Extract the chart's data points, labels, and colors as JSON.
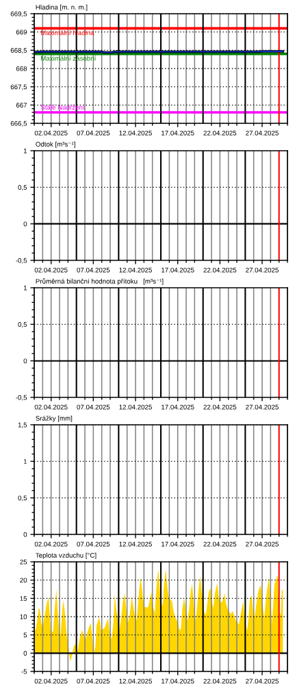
{
  "chart_data": [
    {
      "type": "line",
      "ylabel": "Hladina [m. n. m.]",
      "xlim": [
        "2025-03-31",
        "2025-04-30"
      ],
      "xticks": [
        {
          "value": "2025-03-31",
          "label": null
        },
        {
          "value": "2025-04-01",
          "label": null
        },
        {
          "value": "2025-04-02",
          "label": "02.04.2025"
        },
        {
          "value": "2025-04-03",
          "label": null
        },
        {
          "value": "2025-04-04",
          "label": null
        },
        {
          "value": "2025-04-06",
          "label": null
        },
        {
          "value": "2025-04-07",
          "label": "07.04.2025"
        },
        {
          "value": "2025-04-08",
          "label": null
        },
        {
          "value": "2025-04-09",
          "label": null
        },
        {
          "value": "2025-04-11",
          "label": null
        },
        {
          "value": "2025-04-12",
          "label": "12.04.2025"
        },
        {
          "value": "2025-04-13",
          "label": null
        },
        {
          "value": "2025-04-14",
          "label": null
        },
        {
          "value": "2025-04-16",
          "label": null
        },
        {
          "value": "2025-04-17",
          "label": "17.04.2025"
        },
        {
          "value": "2025-04-18",
          "label": null
        },
        {
          "value": "2025-04-19",
          "label": null
        },
        {
          "value": "2025-04-21",
          "label": null
        },
        {
          "value": "2025-04-22",
          "label": "22.04.2025"
        },
        {
          "value": "2025-04-23",
          "label": null
        },
        {
          "value": "2025-04-24",
          "label": null
        },
        {
          "value": "2025-04-26",
          "label": null
        },
        {
          "value": "2025-04-27",
          "label": "27.04.2025"
        },
        {
          "value": "2025-04-28",
          "label": null
        },
        {
          "value": "2025-04-29",
          "label": null
        },
        {
          "value": "2025-04-30",
          "label": null
        }
      ],
      "ylim": [
        666.5,
        669.5
      ],
      "yticks": [
        {
          "value": 666.5,
          "label": "666,5"
        },
        {
          "value": 666.6,
          "label": null
        },
        {
          "value": 666.7,
          "label": null
        },
        {
          "value": 666.8,
          "label": null
        },
        {
          "value": 666.9,
          "label": null
        },
        667,
        {
          "value": 667.1,
          "label": null
        },
        {
          "value": 667.2,
          "label": null
        },
        {
          "value": 667.3,
          "label": null
        },
        {
          "value": 667.4,
          "label": null
        },
        {
          "value": 667.5,
          "label": "667,5"
        },
        {
          "value": 667.6,
          "label": null
        },
        {
          "value": 667.7,
          "label": null
        },
        {
          "value": 667.8,
          "label": null
        },
        {
          "value": 667.9,
          "label": null
        },
        668,
        {
          "value": 668.1,
          "label": null
        },
        {
          "value": 668.2,
          "label": null
        },
        {
          "value": 668.3,
          "label": null
        },
        {
          "value": 668.4,
          "label": null
        },
        {
          "value": 668.5,
          "label": "668,5"
        },
        {
          "value": 668.6,
          "label": null
        },
        {
          "value": 668.7,
          "label": null
        },
        {
          "value": 668.8,
          "label": null
        },
        {
          "value": 668.9,
          "label": null
        },
        669,
        {
          "value": 669.1,
          "label": null
        },
        {
          "value": 669.2,
          "label": null
        },
        {
          "value": 669.3,
          "label": null
        },
        {
          "value": 669.4,
          "label": null
        },
        {
          "value": 669.5,
          "label": "669,5"
        }
      ],
      "grid": true,
      "series": [
        {
          "color": "#000000",
          "x": [
            "2025-03-31T00:00",
            "2025-04-01T00:00",
            "2025-04-08T00:00",
            "2025-04-08T06:00",
            "2025-04-09T06:00",
            "2025-04-09T12:00",
            "2025-04-26T12:00",
            "2025-04-27T00:00",
            "2025-04-29T11:00"
          ],
          "values": [
            668.45,
            668.46,
            668.46,
            668.44,
            668.44,
            668.46,
            668.46,
            668.47,
            668.47
          ]
        },
        {
          "color": "#1030e0",
          "x": [
            "2025-03-31T00:00",
            "2025-04-01T00:00",
            "2025-04-08T00:00",
            "2025-04-08T06:00",
            "2025-04-09T06:00",
            "2025-04-09T12:00",
            "2025-04-26T12:00",
            "2025-04-27T00:00",
            "2025-04-29T11:00"
          ],
          "values": [
            668.45,
            668.46,
            668.46,
            668.44,
            668.44,
            668.46,
            668.46,
            668.47,
            668.47
          ]
        }
      ],
      "ref_lines": [
        {
          "axis": "y",
          "value": 669.1,
          "label": "Maximální hladina",
          "color": "#ff0000"
        },
        {
          "axis": "y",
          "value": 668.4,
          "label": "Maximální zásobní",
          "color": "#008000"
        },
        {
          "axis": "y",
          "value": 666.8,
          "label": "Stálé Nadržení",
          "color": "#ff00ff"
        },
        {
          "axis": "x",
          "value": "2025-04-05",
          "color": "#000000"
        },
        {
          "axis": "x",
          "value": "2025-04-10",
          "color": "#000000"
        },
        {
          "axis": "x",
          "value": "2025-04-15",
          "color": "#000000"
        },
        {
          "axis": "x",
          "value": "2025-04-20",
          "color": "#000000"
        },
        {
          "axis": "x",
          "value": "2025-04-25",
          "color": "#000000"
        },
        {
          "axis": "x",
          "value": "2025-04-29",
          "color": "#ff0000"
        }
      ]
    },
    {
      "type": "line",
      "ylabel": "Odtok [m³s⁻¹]",
      "xlim": [
        "2025-03-31",
        "2025-04-30"
      ],
      "xticks": [
        {
          "value": "2025-03-31",
          "label": null
        },
        {
          "value": "2025-04-01",
          "label": null
        },
        {
          "value": "2025-04-02",
          "label": "02.04.2025"
        },
        {
          "value": "2025-04-03",
          "label": null
        },
        {
          "value": "2025-04-04",
          "label": null
        },
        {
          "value": "2025-04-06",
          "label": null
        },
        {
          "value": "2025-04-07",
          "label": "07.04.2025"
        },
        {
          "value": "2025-04-08",
          "label": null
        },
        {
          "value": "2025-04-09",
          "label": null
        },
        {
          "value": "2025-04-11",
          "label": null
        },
        {
          "value": "2025-04-12",
          "label": "12.04.2025"
        },
        {
          "value": "2025-04-13",
          "label": null
        },
        {
          "value": "2025-04-14",
          "label": null
        },
        {
          "value": "2025-04-16",
          "label": null
        },
        {
          "value": "2025-04-17",
          "label": "17.04.2025"
        },
        {
          "value": "2025-04-18",
          "label": null
        },
        {
          "value": "2025-04-19",
          "label": null
        },
        {
          "value": "2025-04-21",
          "label": null
        },
        {
          "value": "2025-04-22",
          "label": "22.04.2025"
        },
        {
          "value": "2025-04-23",
          "label": null
        },
        {
          "value": "2025-04-24",
          "label": null
        },
        {
          "value": "2025-04-26",
          "label": null
        },
        {
          "value": "2025-04-27",
          "label": "27.04.2025"
        },
        {
          "value": "2025-04-28",
          "label": null
        },
        {
          "value": "2025-04-29",
          "label": null
        },
        {
          "value": "2025-04-30",
          "label": null
        }
      ],
      "ylim": [
        -0.5,
        1
      ],
      "yticks": [
        {
          "value": -0.5,
          "label": "-0,5"
        },
        {
          "value": -0.4,
          "label": null
        },
        {
          "value": -0.3,
          "label": null
        },
        {
          "value": -0.2,
          "label": null
        },
        {
          "value": -0.1,
          "label": null
        },
        0,
        {
          "value": 0.1,
          "label": null
        },
        {
          "value": 0.2,
          "label": null
        },
        {
          "value": 0.3,
          "label": null
        },
        {
          "value": 0.4,
          "label": null
        },
        {
          "value": 0.5,
          "label": "0,5"
        },
        {
          "value": 0.6,
          "label": null
        },
        {
          "value": 0.7,
          "label": null
        },
        {
          "value": 0.8,
          "label": null
        },
        {
          "value": 0.9,
          "label": null
        },
        1
      ],
      "grid": "x",
      "ref_lines": [
        {
          "axis": "y",
          "value": 0,
          "color": "#000000"
        },
        {
          "axis": "y",
          "value": 0.5,
          "color": "#000000",
          "line_style": "dotted"
        },
        {
          "axis": "x",
          "value": "2025-04-05",
          "color": "#000000"
        },
        {
          "axis": "x",
          "value": "2025-04-10",
          "color": "#000000"
        },
        {
          "axis": "x",
          "value": "2025-04-15",
          "color": "#000000"
        },
        {
          "axis": "x",
          "value": "2025-04-20",
          "color": "#000000"
        },
        {
          "axis": "x",
          "value": "2025-04-25",
          "color": "#000000"
        },
        {
          "axis": "x",
          "value": "2025-04-29",
          "color": "#ff0000"
        }
      ]
    },
    {
      "type": "line",
      "ylabel": "Průměrná bilanční hodnota přítoku   [m³s⁻¹]",
      "xlim": [
        "2025-03-31",
        "2025-04-30"
      ],
      "xticks": [
        {
          "value": "2025-03-31",
          "label": null
        },
        {
          "value": "2025-04-01",
          "label": null
        },
        {
          "value": "2025-04-02",
          "label": "02.04.2025"
        },
        {
          "value": "2025-04-03",
          "label": null
        },
        {
          "value": "2025-04-04",
          "label": null
        },
        {
          "value": "2025-04-06",
          "label": null
        },
        {
          "value": "2025-04-07",
          "label": "07.04.2025"
        },
        {
          "value": "2025-04-08",
          "label": null
        },
        {
          "value": "2025-04-09",
          "label": null
        },
        {
          "value": "2025-04-11",
          "label": null
        },
        {
          "value": "2025-04-12",
          "label": "12.04.2025"
        },
        {
          "value": "2025-04-13",
          "label": null
        },
        {
          "value": "2025-04-14",
          "label": null
        },
        {
          "value": "2025-04-16",
          "label": null
        },
        {
          "value": "2025-04-17",
          "label": "17.04.2025"
        },
        {
          "value": "2025-04-18",
          "label": null
        },
        {
          "value": "2025-04-19",
          "label": null
        },
        {
          "value": "2025-04-21",
          "label": null
        },
        {
          "value": "2025-04-22",
          "label": "22.04.2025"
        },
        {
          "value": "2025-04-23",
          "label": null
        },
        {
          "value": "2025-04-24",
          "label": null
        },
        {
          "value": "2025-04-26",
          "label": null
        },
        {
          "value": "2025-04-27",
          "label": "27.04.2025"
        },
        {
          "value": "2025-04-28",
          "label": null
        },
        {
          "value": "2025-04-29",
          "label": null
        },
        {
          "value": "2025-04-30",
          "label": null
        }
      ],
      "ylim": [
        -0.5,
        1
      ],
      "yticks": [
        {
          "value": -0.5,
          "label": "-0,5"
        },
        {
          "value": -0.4,
          "label": null
        },
        {
          "value": -0.3,
          "label": null
        },
        {
          "value": -0.2,
          "label": null
        },
        {
          "value": -0.1,
          "label": null
        },
        0,
        {
          "value": 0.1,
          "label": null
        },
        {
          "value": 0.2,
          "label": null
        },
        {
          "value": 0.3,
          "label": null
        },
        {
          "value": 0.4,
          "label": null
        },
        {
          "value": 0.5,
          "label": "0,5"
        },
        {
          "value": 0.6,
          "label": null
        },
        {
          "value": 0.7,
          "label": null
        },
        {
          "value": 0.8,
          "label": null
        },
        {
          "value": 0.9,
          "label": null
        },
        1
      ],
      "grid": "x",
      "ref_lines": [
        {
          "axis": "y",
          "value": 0,
          "color": "#000000"
        },
        {
          "axis": "y",
          "value": 0.5,
          "color": "#000000",
          "line_style": "dotted"
        },
        {
          "axis": "x",
          "value": "2025-04-05",
          "color": "#000000"
        },
        {
          "axis": "x",
          "value": "2025-04-10",
          "color": "#000000"
        },
        {
          "axis": "x",
          "value": "2025-04-15",
          "color": "#000000"
        },
        {
          "axis": "x",
          "value": "2025-04-20",
          "color": "#000000"
        },
        {
          "axis": "x",
          "value": "2025-04-25",
          "color": "#000000"
        },
        {
          "axis": "x",
          "value": "2025-04-29",
          "color": "#ff0000"
        }
      ]
    },
    {
      "type": "line",
      "ylabel": "Srážky [mm]",
      "xlim": [
        "2025-03-31",
        "2025-04-30"
      ],
      "xticks": [
        {
          "value": "2025-03-31",
          "label": null
        },
        {
          "value": "2025-04-01",
          "label": null
        },
        {
          "value": "2025-04-02",
          "label": "02.04.2025"
        },
        {
          "value": "2025-04-03",
          "label": null
        },
        {
          "value": "2025-04-04",
          "label": null
        },
        {
          "value": "2025-04-06",
          "label": null
        },
        {
          "value": "2025-04-07",
          "label": "07.04.2025"
        },
        {
          "value": "2025-04-08",
          "label": null
        },
        {
          "value": "2025-04-09",
          "label": null
        },
        {
          "value": "2025-04-11",
          "label": null
        },
        {
          "value": "2025-04-12",
          "label": "12.04.2025"
        },
        {
          "value": "2025-04-13",
          "label": null
        },
        {
          "value": "2025-04-14",
          "label": null
        },
        {
          "value": "2025-04-16",
          "label": null
        },
        {
          "value": "2025-04-17",
          "label": "17.04.2025"
        },
        {
          "value": "2025-04-18",
          "label": null
        },
        {
          "value": "2025-04-19",
          "label": null
        },
        {
          "value": "2025-04-21",
          "label": null
        },
        {
          "value": "2025-04-22",
          "label": "22.04.2025"
        },
        {
          "value": "2025-04-23",
          "label": null
        },
        {
          "value": "2025-04-24",
          "label": null
        },
        {
          "value": "2025-04-26",
          "label": null
        },
        {
          "value": "2025-04-27",
          "label": "27.04.2025"
        },
        {
          "value": "2025-04-28",
          "label": null
        },
        {
          "value": "2025-04-29",
          "label": null
        },
        {
          "value": "2025-04-30",
          "label": null
        }
      ],
      "ylim": [
        0,
        1.5
      ],
      "yticks": [
        0,
        {
          "value": 0.1,
          "label": null
        },
        {
          "value": 0.2,
          "label": null
        },
        {
          "value": 0.3,
          "label": null
        },
        {
          "value": 0.4,
          "label": null
        },
        {
          "value": 0.5,
          "label": "0,5"
        },
        {
          "value": 0.6,
          "label": null
        },
        {
          "value": 0.7,
          "label": null
        },
        {
          "value": 0.8,
          "label": null
        },
        {
          "value": 0.9,
          "label": null
        },
        1,
        {
          "value": 1.1,
          "label": null
        },
        {
          "value": 1.2,
          "label": null
        },
        {
          "value": 1.3,
          "label": null
        },
        {
          "value": 1.4,
          "label": null
        },
        {
          "value": 1.5,
          "label": "1,5"
        }
      ],
      "grid": true,
      "ref_lines": [
        {
          "axis": "x",
          "value": "2025-04-05",
          "color": "#000000"
        },
        {
          "axis": "x",
          "value": "2025-04-10",
          "color": "#000000"
        },
        {
          "axis": "x",
          "value": "2025-04-15",
          "color": "#000000"
        },
        {
          "axis": "x",
          "value": "2025-04-20",
          "color": "#000000"
        },
        {
          "axis": "x",
          "value": "2025-04-25",
          "color": "#000000"
        },
        {
          "axis": "x",
          "value": "2025-04-29",
          "color": "#ff0000"
        }
      ]
    },
    {
      "type": "area",
      "ylabel": "Teplota vzduchu [°C]",
      "xlim": [
        "2025-03-31",
        "2025-04-30"
      ],
      "xticks": [
        {
          "value": "2025-03-31",
          "label": null
        },
        {
          "value": "2025-04-01",
          "label": null
        },
        {
          "value": "2025-04-02",
          "label": "02.04.2025"
        },
        {
          "value": "2025-04-03",
          "label": null
        },
        {
          "value": "2025-04-04",
          "label": null
        },
        {
          "value": "2025-04-06",
          "label": null
        },
        {
          "value": "2025-04-07",
          "label": "07.04.2025"
        },
        {
          "value": "2025-04-08",
          "label": null
        },
        {
          "value": "2025-04-09",
          "label": null
        },
        {
          "value": "2025-04-11",
          "label": null
        },
        {
          "value": "2025-04-12",
          "label": "12.04.2025"
        },
        {
          "value": "2025-04-13",
          "label": null
        },
        {
          "value": "2025-04-14",
          "label": null
        },
        {
          "value": "2025-04-16",
          "label": null
        },
        {
          "value": "2025-04-17",
          "label": "17.04.2025"
        },
        {
          "value": "2025-04-18",
          "label": null
        },
        {
          "value": "2025-04-19",
          "label": null
        },
        {
          "value": "2025-04-21",
          "label": null
        },
        {
          "value": "2025-04-22",
          "label": "22.04.2025"
        },
        {
          "value": "2025-04-23",
          "label": null
        },
        {
          "value": "2025-04-24",
          "label": null
        },
        {
          "value": "2025-04-26",
          "label": null
        },
        {
          "value": "2025-04-27",
          "label": "27.04.2025"
        },
        {
          "value": "2025-04-28",
          "label": null
        },
        {
          "value": "2025-04-29",
          "label": null
        },
        {
          "value": "2025-04-30",
          "label": null
        }
      ],
      "ylim": [
        -5,
        25
      ],
      "yticks": [
        -5,
        {
          "value": -4,
          "label": null
        },
        {
          "value": -3,
          "label": null
        },
        {
          "value": -2,
          "label": null
        },
        {
          "value": -1,
          "label": null
        },
        0,
        {
          "value": 1,
          "label": null
        },
        {
          "value": 2,
          "label": null
        },
        {
          "value": 3,
          "label": null
        },
        {
          "value": 4,
          "label": null
        },
        5,
        {
          "value": 6,
          "label": null
        },
        {
          "value": 7,
          "label": null
        },
        {
          "value": 8,
          "label": null
        },
        {
          "value": 9,
          "label": null
        },
        10,
        {
          "value": 11,
          "label": null
        },
        {
          "value": 12,
          "label": null
        },
        {
          "value": 13,
          "label": null
        },
        {
          "value": 14,
          "label": null
        },
        15,
        {
          "value": 16,
          "label": null
        },
        {
          "value": 17,
          "label": null
        },
        {
          "value": 18,
          "label": null
        },
        {
          "value": 19,
          "label": null
        },
        20,
        {
          "value": 21,
          "label": null
        },
        {
          "value": 22,
          "label": null
        },
        {
          "value": 23,
          "label": null
        },
        {
          "value": 24,
          "label": null
        },
        25
      ],
      "grid": true,
      "series": [
        {
          "color": "#ffd600",
          "x": [
            "2025-03-31T00:00",
            "2025-03-31T05:00",
            "2025-03-31T13:00",
            "2025-03-31T16:00",
            "2025-03-31T20:00",
            "2025-04-01T00:00",
            "2025-04-01T06:00",
            "2025-04-01T12:00",
            "2025-04-01T17:00",
            "2025-04-01T20:00",
            "2025-04-01T23:00",
            "2025-04-02T06:00",
            "2025-04-02T09:00",
            "2025-04-02T15:00",
            "2025-04-02T19:00",
            "2025-04-02T23:00",
            "2025-04-03T03:00",
            "2025-04-03T08:00",
            "2025-04-03T11:00",
            "2025-04-03T15:00",
            "2025-04-03T19:00",
            "2025-04-04T00:00",
            "2025-04-04T03:00",
            "2025-04-04T06:00",
            "2025-04-04T10:00",
            "2025-04-04T13:00",
            "2025-04-04T18:00",
            "2025-04-04T23:00",
            "2025-04-05T02:00",
            "2025-04-05T05:00",
            "2025-04-05T10:00",
            "2025-04-05T16:00",
            "2025-04-05T22:00",
            "2025-04-06T03:00",
            "2025-04-06T07:00",
            "2025-04-06T12:00",
            "2025-04-06T17:00",
            "2025-04-06T22:00",
            "2025-04-07T01:00",
            "2025-04-07T06:00",
            "2025-04-07T09:00",
            "2025-04-07T17:00",
            "2025-04-07T22:00",
            "2025-04-08T08:00",
            "2025-04-08T18:00",
            "2025-04-08T22:00",
            "2025-04-09T04:00",
            "2025-04-09T09:00",
            "2025-04-09T13:00",
            "2025-04-09T17:00",
            "2025-04-09T21:00",
            "2025-04-10T02:00",
            "2025-04-10T07:00",
            "2025-04-10T12:00",
            "2025-04-10T17:00",
            "2025-04-10T22:00",
            "2025-04-11T02:00",
            "2025-04-11T08:00",
            "2025-04-11T13:00",
            "2025-04-11T17:00",
            "2025-04-11T22:00",
            "2025-04-12T03:00",
            "2025-04-12T08:00",
            "2025-04-12T14:00",
            "2025-04-12T18:00",
            "2025-04-12T21:00",
            "2025-04-13T02:00",
            "2025-04-13T12:00",
            "2025-04-13T21:00",
            "2025-04-14T02:00",
            "2025-04-14T07:00",
            "2025-04-14T12:00",
            "2025-04-14T17:00",
            "2025-04-14T21:00",
            "2025-04-15T01:00",
            "2025-04-15T06:00",
            "2025-04-15T09:00",
            "2025-04-15T14:00",
            "2025-04-15T19:00",
            "2025-04-15T23:00",
            "2025-04-16T08:00",
            "2025-04-16T11:00",
            "2025-04-16T16:00",
            "2025-04-17T01:00",
            "2025-04-17T05:00",
            "2025-04-17T09:00",
            "2025-04-17T13:00",
            "2025-04-17T18:00",
            "2025-04-17T23:00",
            "2025-04-18T04:00",
            "2025-04-18T09:00",
            "2025-04-18T13:00",
            "2025-04-18T17:00",
            "2025-04-18T22:00",
            "2025-04-19T03:00",
            "2025-04-19T07:00",
            "2025-04-19T12:00",
            "2025-04-19T16:00",
            "2025-04-19T20:00",
            "2025-04-20T00:00",
            "2025-04-20T03:00",
            "2025-04-20T08:00",
            "2025-04-20T16:00",
            "2025-04-20T21:00",
            "2025-04-21T00:00",
            "2025-04-21T05:00",
            "2025-04-21T10:00",
            "2025-04-21T16:00",
            "2025-04-21T21:00",
            "2025-04-22T02:00",
            "2025-04-22T07:00",
            "2025-04-22T13:00",
            "2025-04-22T17:00",
            "2025-04-22T22:00",
            "2025-04-23T07:00",
            "2025-04-23T12:00",
            "2025-04-23T22:00",
            "2025-04-24T06:00",
            "2025-04-24T11:00",
            "2025-04-24T18:00",
            "2025-04-25T00:00",
            "2025-04-25T05:00",
            "2025-04-25T09:00",
            "2025-04-25T13:00",
            "2025-04-25T18:00",
            "2025-04-25T23:00",
            "2025-04-26T03:00",
            "2025-04-26T09:00",
            "2025-04-26T13:00",
            "2025-04-26T20:00",
            "2025-04-27T02:00",
            "2025-04-27T06:00",
            "2025-04-27T11:00",
            "2025-04-27T19:00",
            "2025-04-28T00:00",
            "2025-04-28T04:00",
            "2025-04-28T11:00",
            "2025-04-28T20:00",
            "2025-04-29T00:00",
            "2025-04-29T05:00",
            "2025-04-29T08:00",
            "2025-04-29T11:00"
          ],
          "values": [
            6.1,
            6.6,
            12.3,
            12.0,
            8.2,
            7.2,
            10.4,
            13.8,
            15.4,
            10.7,
            5.7,
            6.0,
            10.7,
            17.5,
            11.3,
            5.7,
            4.9,
            12.0,
            14.5,
            11.3,
            6.3,
            2.8,
            0.6,
            -2.2,
            -1.3,
            0.3,
            2.5,
            1.9,
            0.3,
            1.3,
            4.4,
            6.4,
            4.4,
            4.1,
            5.7,
            7.2,
            8.2,
            3.1,
            -0.4,
            1.9,
            7.5,
            9.9,
            6.3,
            6.9,
            9.6,
            5.7,
            3.8,
            8.2,
            16.0,
            12.3,
            9.7,
            6.3,
            9.4,
            14.2,
            16.4,
            12.0,
            8.2,
            10.7,
            15.7,
            13.2,
            10.4,
            8.8,
            14.5,
            20.8,
            17.9,
            15.1,
            12.6,
            12.6,
            16.7,
            12.6,
            11.0,
            18.9,
            23.0,
            17.6,
            12.6,
            13.8,
            18.9,
            23.0,
            17.6,
            15.1,
            14.2,
            12.0,
            10.1,
            8.2,
            6.3,
            6.6,
            12.0,
            15.1,
            12.3,
            8.8,
            12.6,
            17.0,
            18.9,
            13.2,
            8.8,
            12.6,
            18.2,
            21.1,
            17.0,
            14.2,
            11.3,
            10.4,
            16.7,
            17.9,
            14.5,
            12.3,
            16.4,
            19.2,
            15.4,
            13.8,
            14.2,
            16.4,
            13.8,
            12.0,
            10.7,
            11.6,
            8.8,
            7.9,
            10.7,
            14.2,
            8.2,
            6.0,
            9.4,
            14.5,
            15.8,
            10.4,
            10.1,
            14.5,
            17.0,
            18.7,
            12.6,
            9.7,
            15.1,
            20.8,
            15.1,
            8.0,
            18.9,
            21.5,
            10.7,
            10.7,
            17.3,
            17.3
          ]
        }
      ],
      "ref_lines": [
        {
          "axis": "y",
          "value": 0,
          "color": "#000000"
        },
        {
          "axis": "x",
          "value": "2025-04-05",
          "color": "#000000"
        },
        {
          "axis": "x",
          "value": "2025-04-10",
          "color": "#000000"
        },
        {
          "axis": "x",
          "value": "2025-04-15",
          "color": "#000000"
        },
        {
          "axis": "x",
          "value": "2025-04-20",
          "color": "#000000"
        },
        {
          "axis": "x",
          "value": "2025-04-25",
          "color": "#000000"
        },
        {
          "axis": "x",
          "value": "2025-04-29",
          "color": "#ff0000"
        }
      ]
    }
  ]
}
